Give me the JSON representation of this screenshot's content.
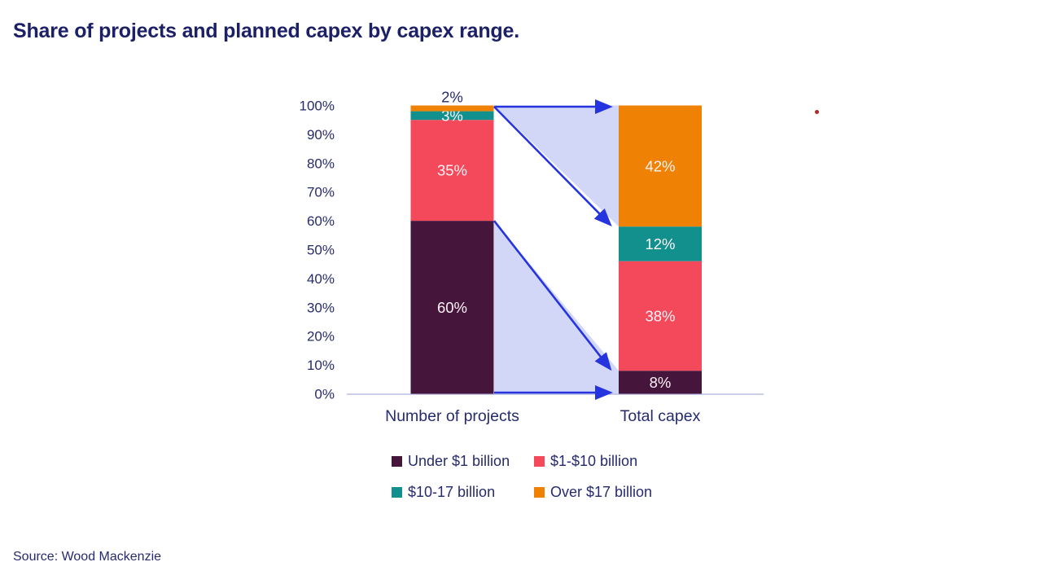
{
  "page": {
    "title": "Share of projects and planned capex by capex range.",
    "source": "Source: Wood Mackenzie"
  },
  "colors": {
    "navy": "#262b6e",
    "title_navy": "#1c2066",
    "arrow_blue": "#2634df",
    "band_fill": "#d2d6f7",
    "axis_line": "#b9bde4",
    "label_light": "#fdf2f6",
    "stray_dot": "#b62626"
  },
  "chart_data": {
    "type": "bar",
    "variant": "stacked-100-percent",
    "title": "Share of projects and planned capex by capex range.",
    "categories": [
      "Number of projects",
      "Total capex"
    ],
    "series": [
      {
        "name": "Under $1 billion",
        "color": "#46153c",
        "values": [
          60,
          8
        ]
      },
      {
        "name": "$1-$10 billion",
        "color": "#f4495a",
        "values": [
          35,
          38
        ]
      },
      {
        "name": "$10-17 billion",
        "color": "#12908e",
        "values": [
          3,
          12
        ]
      },
      {
        "name": "Over $17 billion",
        "color": "#ef8204",
        "values": [
          2,
          42
        ]
      }
    ],
    "unit": "%",
    "ylim": [
      0,
      100
    ],
    "y_ticks": [
      "0%",
      "10%",
      "20%",
      "30%",
      "40%",
      "50%",
      "60%",
      "70%",
      "80%",
      "90%",
      "100%"
    ],
    "grid": false,
    "legend_position": "bottom",
    "flow_arrows": [
      {
        "from_pct": 100,
        "to_pct": 100
      },
      {
        "from_pct": 100,
        "to_pct": 58
      },
      {
        "from_pct": 60,
        "to_pct": 8
      },
      {
        "from_pct": 0,
        "to_pct": 0
      }
    ],
    "flow_bands": [
      {
        "left_top": 100,
        "left_bottom": 100,
        "right_top": 100,
        "right_bottom": 58
      },
      {
        "left_top": 60,
        "left_bottom": 0,
        "right_top": 8,
        "right_bottom": 0
      }
    ]
  }
}
